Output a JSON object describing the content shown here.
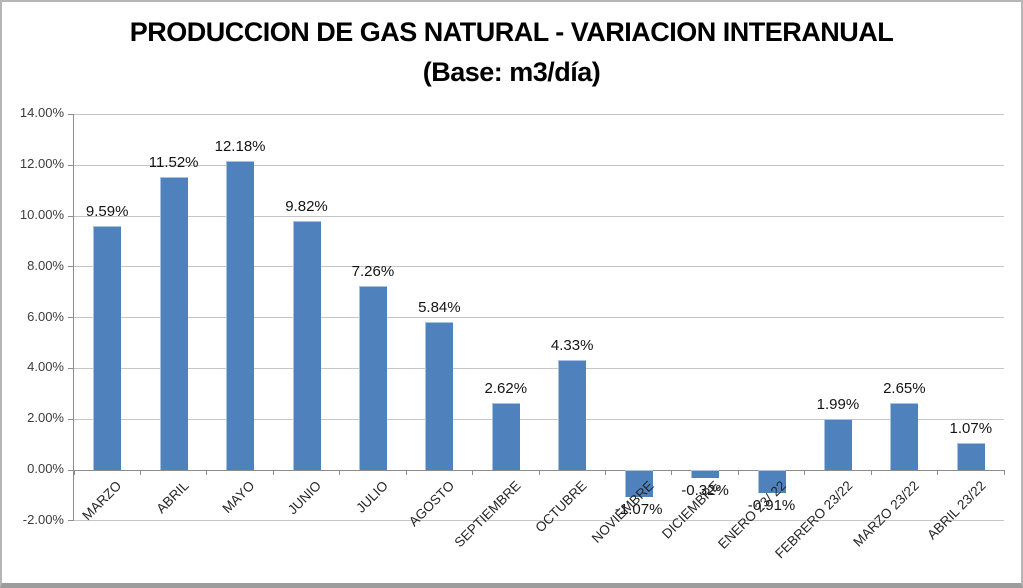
{
  "window": {
    "background": "#ffffff",
    "frame_border_color": "#9c9c9c"
  },
  "title": {
    "line1": "PRODUCCION DE GAS NATURAL - VARIACION INTERANUAL",
    "line2": "(Base: m3/día)"
  },
  "chart_data": {
    "type": "bar",
    "title": "PRODUCCION DE GAS NATURAL - VARIACION INTERANUAL",
    "subtitle": "(Base: m3/día)",
    "categories": [
      "MARZO",
      "ABRIL",
      "MAYO",
      "JUNIO",
      "JULIO",
      "AGOSTO",
      "SEPTIEMBRE",
      "OCTUBRE",
      "NOVIEMBRE",
      "DICIEMBRE",
      "ENERO 23/ 22",
      "FEBRERO 23/22",
      "MARZO 23/22",
      "ABRIL 23/22"
    ],
    "values": [
      9.59,
      11.52,
      12.18,
      9.82,
      7.26,
      5.84,
      2.62,
      4.33,
      -1.07,
      -0.32,
      -0.91,
      1.99,
      2.65,
      1.07
    ],
    "data_labels": [
      "9.59%",
      "11.52%",
      "12.18%",
      "9.82%",
      "7.26%",
      "5.84%",
      "2.62%",
      "4.33%",
      "-1.07%",
      "-0.32%",
      "-0.91%",
      "1.99%",
      "2.65%",
      "1.07%"
    ],
    "ytick_labels": [
      "14.00%",
      "12.00%",
      "10.00%",
      "8.00%",
      "6.00%",
      "4.00%",
      "2.00%",
      "0.00%",
      "-2.00%"
    ],
    "ytick_values": [
      14,
      12,
      10,
      8,
      6,
      4,
      2,
      0,
      -2
    ],
    "ylim": [
      -2,
      14
    ],
    "ytick_step": 2,
    "grid": true,
    "legend": "none",
    "xlabel": "",
    "ylabel": "",
    "bar_color": "#4f81bd",
    "bar_border_color": "#a9c1de",
    "gridline_color": "#c6c6c6",
    "axis_color": "#8c8c8c"
  }
}
